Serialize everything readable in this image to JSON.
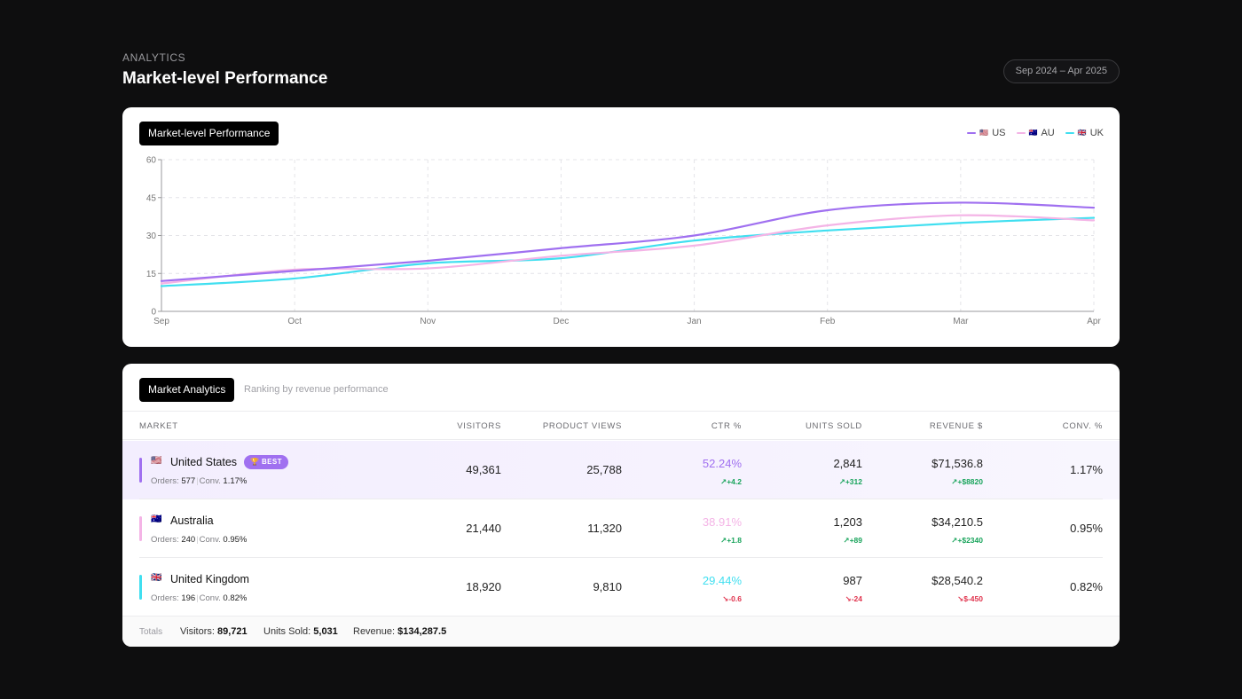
{
  "header": {
    "eyebrow": "ANALYTICS",
    "title": "Market-level Performance",
    "date_range": "Sep 2024 – Apr 2025"
  },
  "chart_card": {
    "chip_label": "Market-level Performance",
    "legend": [
      {
        "flag": "🇺🇸",
        "label": "US",
        "color": "#a070f0"
      },
      {
        "flag": "🇦🇺",
        "label": "AU",
        "color": "#f4b4e6"
      },
      {
        "flag": "🇬🇧",
        "label": "UK",
        "color": "#40dff0"
      }
    ]
  },
  "chart_data": {
    "type": "line",
    "x": [
      "Sep",
      "Oct",
      "Nov",
      "Dec",
      "Jan",
      "Feb",
      "Mar",
      "Apr"
    ],
    "ylim": [
      0,
      60
    ],
    "yticks": [
      0,
      15,
      30,
      45,
      60
    ],
    "grid": true,
    "legend_position": "top-right",
    "series": [
      {
        "name": "US",
        "color": "#a070f0",
        "values": [
          12,
          16,
          20,
          25,
          30,
          40,
          43,
          41
        ]
      },
      {
        "name": "AU",
        "color": "#f4b4e6",
        "values": [
          11,
          16.5,
          17,
          22,
          26,
          34,
          38,
          36
        ]
      },
      {
        "name": "UK",
        "color": "#40dff0",
        "values": [
          10,
          13,
          19,
          21,
          28,
          32,
          35,
          37
        ]
      }
    ]
  },
  "table_card": {
    "chip_label": "Market Analytics",
    "subtitle": "Ranking by revenue performance",
    "columns": [
      "MARKET",
      "VISITORS",
      "PRODUCT VIEWS",
      "CTR %",
      "UNITS SOLD",
      "REVENUE $",
      "CONV. %"
    ],
    "best_badge": "🏆 BEST",
    "orders_label": "Orders:",
    "conv_label": "Conv.",
    "rows": [
      {
        "flag": "🇺🇸",
        "market": "United States",
        "accent": "#a070f0",
        "orders": "577",
        "conv_sub": "1.17%",
        "visitors": "49,361",
        "views": "25,788",
        "ctr": "52.24%",
        "ctr_color": "#a070f0",
        "ctr_delta": "↗+4.2",
        "ctr_dir": "up",
        "units": "2,841",
        "units_delta": "↗+312",
        "units_dir": "up",
        "revenue": "$71,536.8",
        "rev_delta": "↗+$8820",
        "rev_dir": "up",
        "conv": "1.17%"
      },
      {
        "flag": "🇦🇺",
        "market": "Australia",
        "accent": "#f4b4e6",
        "orders": "240",
        "conv_sub": "0.95%",
        "visitors": "21,440",
        "views": "11,320",
        "ctr": "38.91%",
        "ctr_color": "#f4b4e6",
        "ctr_delta": "↗+1.8",
        "ctr_dir": "up",
        "units": "1,203",
        "units_delta": "↗+89",
        "units_dir": "up",
        "revenue": "$34,210.5",
        "rev_delta": "↗+$2340",
        "rev_dir": "up",
        "conv": "0.95%"
      },
      {
        "flag": "🇬🇧",
        "market": "United Kingdom",
        "accent": "#40dff0",
        "orders": "196",
        "conv_sub": "0.82%",
        "visitors": "18,920",
        "views": "9,810",
        "ctr": "29.44%",
        "ctr_color": "#40dff0",
        "ctr_delta": "↘-0.6",
        "ctr_dir": "down",
        "units": "987",
        "units_delta": "↘-24",
        "units_dir": "down",
        "revenue": "$28,540.2",
        "rev_delta": "↘$-450",
        "rev_dir": "down",
        "conv": "0.82%"
      }
    ],
    "totals": {
      "label": "Totals",
      "visitors_label": "Visitors:",
      "visitors": "89,721",
      "units_label": "Units Sold:",
      "units": "5,031",
      "revenue_label": "Revenue:",
      "revenue": "$134,287.5"
    }
  }
}
